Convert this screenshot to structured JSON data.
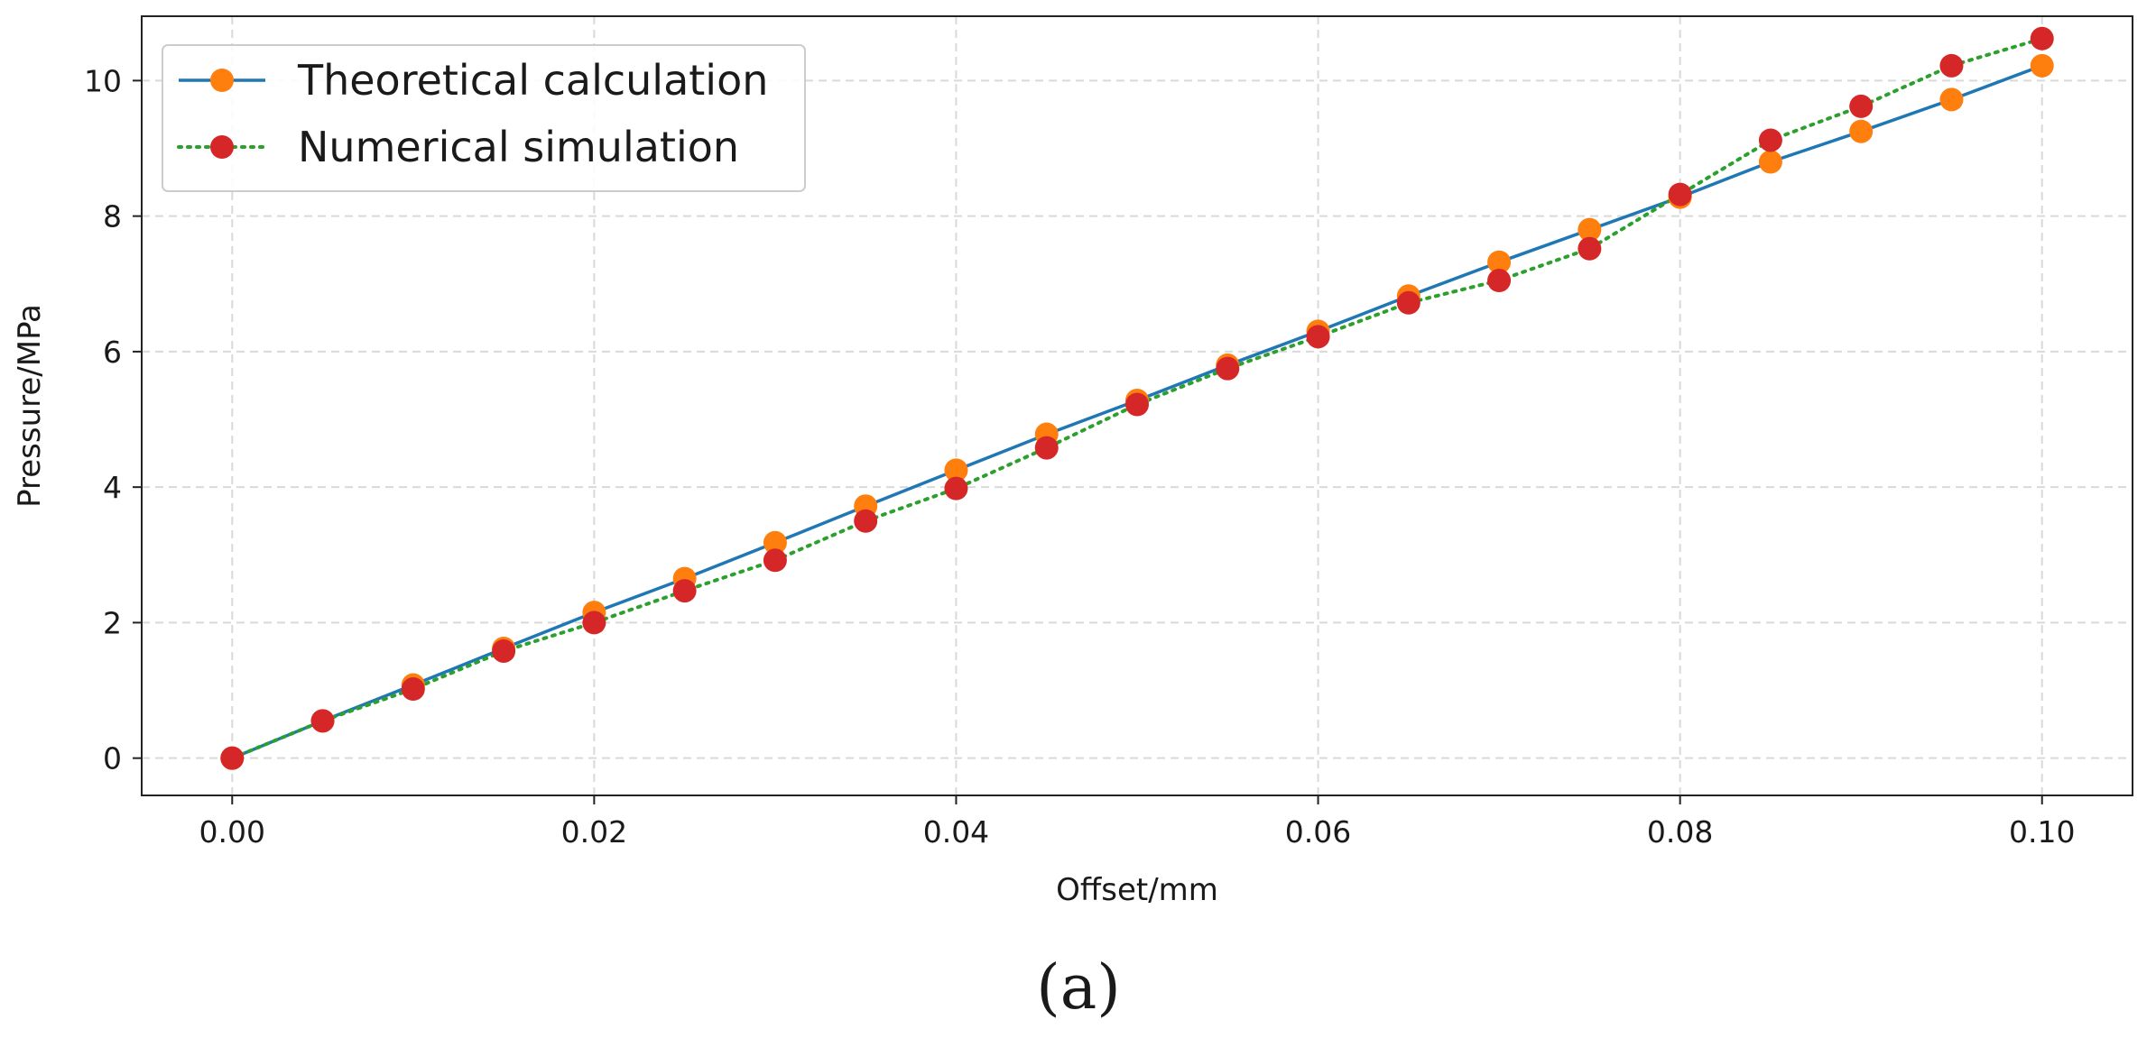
{
  "chart_data": {
    "type": "line",
    "title": "",
    "xlabel": "Offset/mm",
    "ylabel": "Pressure/MPa",
    "xlim": [
      -0.005,
      0.105
    ],
    "ylim": [
      -0.55,
      10.95
    ],
    "xticks": [
      0.0,
      0.02,
      0.04,
      0.06,
      0.08,
      0.1
    ],
    "xtick_labels": [
      "0.00",
      "0.02",
      "0.04",
      "0.06",
      "0.08",
      "0.10"
    ],
    "yticks": [
      0,
      2,
      4,
      6,
      8,
      10
    ],
    "ytick_labels": [
      "0",
      "2",
      "4",
      "6",
      "8",
      "10"
    ],
    "grid": true,
    "legend_position": "top-left",
    "x": [
      0.0,
      0.005,
      0.01,
      0.015,
      0.02,
      0.025,
      0.03,
      0.035,
      0.04,
      0.045,
      0.05,
      0.055,
      0.06,
      0.065,
      0.07,
      0.075,
      0.08,
      0.085,
      0.09,
      0.095,
      0.1
    ],
    "series": [
      {
        "name": "Theoretical calculation",
        "line_color": "#1f77b4",
        "marker_color": "#ff7f0e",
        "line_style": "solid",
        "values": [
          0.0,
          0.55,
          1.08,
          1.62,
          2.15,
          2.65,
          3.18,
          3.72,
          4.25,
          4.78,
          5.28,
          5.8,
          6.3,
          6.82,
          7.32,
          7.8,
          8.28,
          8.8,
          9.25,
          9.72,
          10.22
        ]
      },
      {
        "name": "Numerical simulation",
        "line_color": "#2ca02c",
        "marker_color": "#d62728",
        "line_style": "dotted",
        "values": [
          0.0,
          0.55,
          1.02,
          1.58,
          2.0,
          2.47,
          2.92,
          3.5,
          3.98,
          4.58,
          5.22,
          5.75,
          6.22,
          6.72,
          7.05,
          7.52,
          8.32,
          9.12,
          9.62,
          10.22,
          10.62
        ]
      }
    ],
    "panel_label": "(a)"
  }
}
